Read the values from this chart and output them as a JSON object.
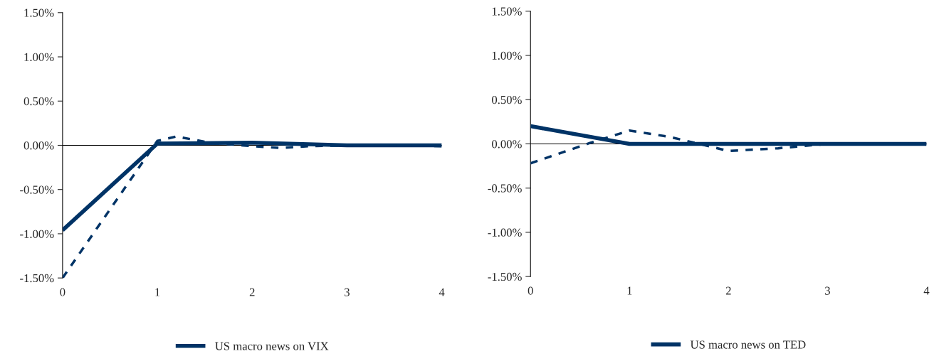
{
  "chart_data": [
    {
      "type": "line",
      "xlim": [
        0,
        4
      ],
      "xticks": [
        0,
        1,
        2,
        3,
        4
      ],
      "ylim": [
        -1.5,
        1.5
      ],
      "yticks": [
        {
          "value": -1.5,
          "label": "-1.50%"
        },
        {
          "value": -1.0,
          "label": "-1.00%"
        },
        {
          "value": -0.5,
          "label": "-0.50%"
        },
        {
          "value": 0,
          "label": "0.00%"
        },
        {
          "value": 0.5,
          "label": "0.50%"
        },
        {
          "value": 1.0,
          "label": "1.00%"
        },
        {
          "value": 1.5,
          "label": "1.50%"
        }
      ],
      "grid": false,
      "legend": "bottom",
      "marker": "none",
      "ref_lines": [
        {
          "axis": "y",
          "value": 0,
          "color": "#000000"
        }
      ],
      "series": [
        {
          "name": "US macro news on VIX",
          "color": "#003366",
          "line_style": "solid",
          "x": [
            0,
            1,
            2,
            3,
            4
          ],
          "values": [
            -0.96,
            0.02,
            0.03,
            0,
            0
          ]
        },
        {
          "color": "#003366",
          "line_style": "dashed",
          "x": [
            0,
            1,
            1.2,
            1.55,
            2,
            2.3,
            2.6,
            3,
            3.5,
            4
          ],
          "values": [
            -1.5,
            0.05,
            0.1,
            0.03,
            -0.01,
            -0.03,
            -0.01,
            0,
            0,
            -0.01
          ]
        }
      ]
    },
    {
      "type": "line",
      "xlim": [
        0,
        4
      ],
      "xticks": [
        0,
        1,
        2,
        3,
        4
      ],
      "ylim": [
        -1.5,
        1.5
      ],
      "yticks": [
        {
          "value": -1.5,
          "label": "-1.50%"
        },
        {
          "value": -1.0,
          "label": "-1.00%"
        },
        {
          "value": -0.5,
          "label": "-0.50%"
        },
        {
          "value": 0,
          "label": "0.00%"
        },
        {
          "value": 0.5,
          "label": "0.50%"
        },
        {
          "value": 1.0,
          "label": "1.00%"
        },
        {
          "value": 1.5,
          "label": "1.50%"
        }
      ],
      "grid": false,
      "legend": "bottom",
      "marker": "none",
      "ref_lines": [
        {
          "axis": "y",
          "value": 0,
          "color": "#000000"
        }
      ],
      "series": [
        {
          "name": "US macro news on TED",
          "color": "#003366",
          "line_style": "solid",
          "x": [
            0,
            1,
            2,
            3,
            4
          ],
          "values": [
            0.2,
            0,
            0,
            0,
            0
          ]
        },
        {
          "color": "#003366",
          "line_style": "dashed",
          "x": [
            0,
            0.6,
            1,
            1.4,
            1.7,
            2,
            2.5,
            3,
            4
          ],
          "values": [
            -0.22,
            0.01,
            0.15,
            0.08,
            0,
            -0.08,
            -0.05,
            0,
            0
          ]
        }
      ]
    }
  ]
}
